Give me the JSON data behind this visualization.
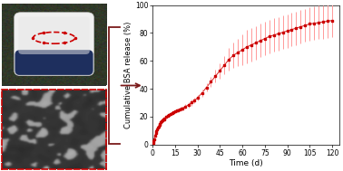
{
  "time": [
    0.3,
    0.7,
    1,
    1.5,
    2,
    2.5,
    3,
    3.5,
    4,
    4.5,
    5,
    5.5,
    6,
    6.5,
    7,
    7.5,
    8,
    9,
    10,
    11,
    12,
    13,
    14,
    15,
    16,
    17,
    18,
    19,
    20,
    22,
    24,
    26,
    28,
    30,
    33,
    36,
    39,
    42,
    45,
    48,
    51,
    54,
    57,
    60,
    63,
    66,
    69,
    72,
    75,
    78,
    81,
    84,
    87,
    90,
    93,
    96,
    99,
    102,
    105,
    108,
    111,
    114,
    117,
    120
  ],
  "cumulative": [
    1,
    2.5,
    4,
    6,
    8,
    9.5,
    11,
    12,
    13,
    14,
    15,
    15.8,
    16.5,
    17.2,
    17.8,
    18.3,
    18.8,
    19.8,
    20.8,
    21.5,
    22.2,
    22.8,
    23.3,
    23.8,
    24.3,
    24.8,
    25.2,
    25.7,
    26.1,
    27.2,
    28.5,
    30.0,
    31.5,
    33.5,
    37,
    41,
    45,
    49,
    53,
    57,
    61,
    64,
    66,
    68,
    70,
    71.5,
    73,
    74.5,
    76,
    77.5,
    78.5,
    79.5,
    80.5,
    81.5,
    82.5,
    83.5,
    84.5,
    85.5,
    86.5,
    87,
    87.5,
    88,
    88.5,
    89
  ],
  "error": [
    0.3,
    0.3,
    0.3,
    0.4,
    0.4,
    0.4,
    0.4,
    0.5,
    0.5,
    0.5,
    0.5,
    0.5,
    0.5,
    0.5,
    0.5,
    0.5,
    0.5,
    0.5,
    0.5,
    0.5,
    0.5,
    0.5,
    0.8,
    1.0,
    1.0,
    1.0,
    1.0,
    1.2,
    1.2,
    1.5,
    2.0,
    2.0,
    2.0,
    2.0,
    2.5,
    3.0,
    3.5,
    4.5,
    5.5,
    6.5,
    8,
    9,
    10,
    11,
    12,
    12,
    12,
    12,
    12,
    12,
    12,
    12,
    12,
    12,
    12,
    12,
    12,
    12,
    12,
    12,
    12,
    12,
    12,
    12
  ],
  "line_color": "#cc0000",
  "marker_color": "#cc0000",
  "error_color": "#ff9999",
  "ylabel": "Cumulative BSA release (%)",
  "xlabel": "Time (d)",
  "xlim": [
    0,
    125
  ],
  "ylim": [
    0,
    100
  ],
  "xticks": [
    0,
    15,
    30,
    45,
    60,
    75,
    90,
    105,
    120
  ],
  "yticks": [
    0,
    20,
    40,
    60,
    80,
    100
  ],
  "bg_color": "#ffffff",
  "top_img_bg": "#2a2a2a",
  "bot_img_bg": "#444444",
  "arrow_color": "#7a1a1a",
  "bracket_color": "#7a1a1a"
}
